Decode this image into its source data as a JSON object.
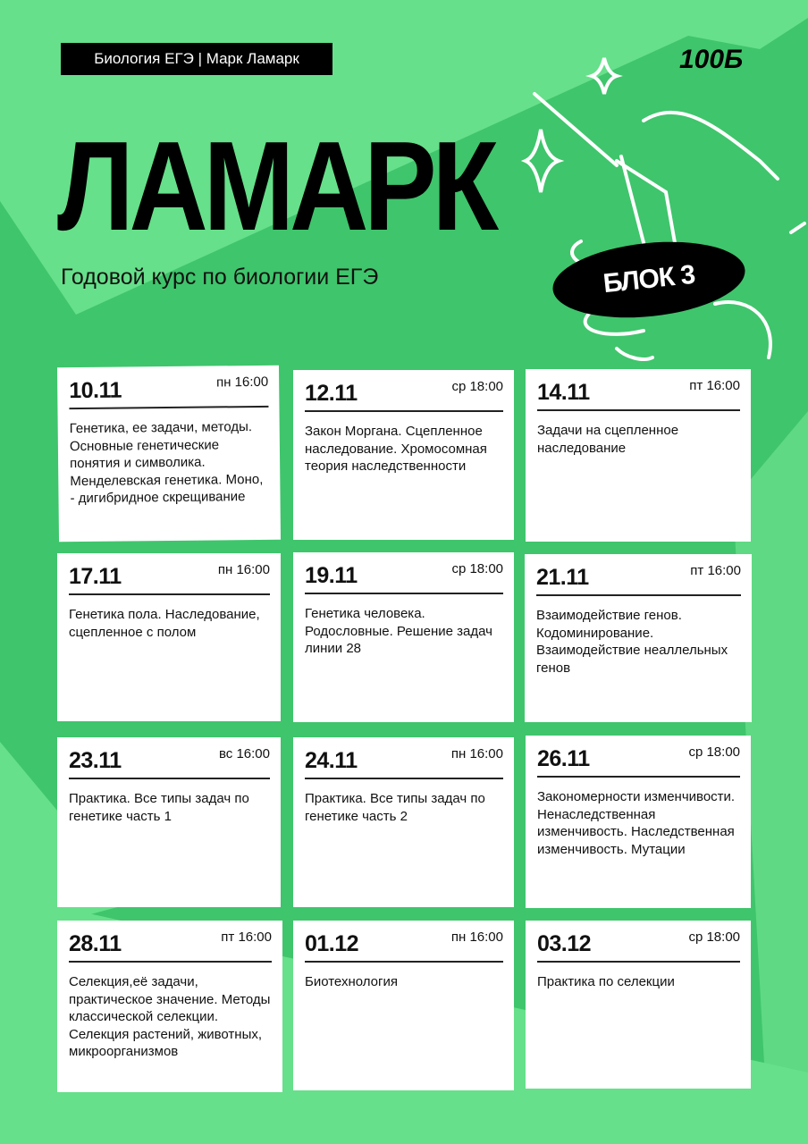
{
  "header": {
    "tag": "Биология ЕГЭ | Марк Ламарк",
    "brand": "100Б",
    "title": "ЛАМАРК",
    "subtitle": "Годовой курс по биологии ЕГЭ",
    "block": "БЛОК 3"
  },
  "colors": {
    "light_green": "#66e08a",
    "dark_green": "#3fc56c",
    "black": "#000000",
    "white": "#ffffff"
  },
  "lessons": [
    {
      "date": "10.11",
      "time": "пн 16:00",
      "text": "Генетика, ее задачи, методы. Основные генетические понятия и символика. Менделевская генетика. Моно, - дигибридное скрещивание"
    },
    {
      "date": "12.11",
      "time": "ср 18:00",
      "text": "Закон Моргана. Сцепленное наследование. Хромосомная теория наследственности"
    },
    {
      "date": "14.11",
      "time": "пт 16:00",
      "text": "Задачи на сцепленное наследование"
    },
    {
      "date": "17.11",
      "time": "пн 16:00",
      "text": "Генетика пола. Наследование, сцепленное с полом"
    },
    {
      "date": "19.11",
      "time": "ср 18:00",
      "text": "Генетика человека. Родословные. Решение задач линии 28"
    },
    {
      "date": "21.11",
      "time": "пт 16:00",
      "text": "Взаимодействие генов. Кодоминирование. Взаимодействие неаллельных генов"
    },
    {
      "date": "23.11",
      "time": "вс 16:00",
      "text": "Практика. Все типы задач по генетике часть 1"
    },
    {
      "date": "24.11",
      "time": "пн 16:00",
      "text": "Практика. Все типы задач по генетике часть 2"
    },
    {
      "date": "26.11",
      "time": "ср 18:00",
      "text": "Закономерности изменчивости. Ненаследственная изменчивость. Наследственная изменчивость. Мутации"
    },
    {
      "date": "28.11",
      "time": "пт 16:00",
      "text": "Селекция,её задачи, практическое значение. Методы классической селекции. Селекция растений, животных, микроорганизмов"
    },
    {
      "date": "01.12",
      "time": "пн 16:00",
      "text": "Биотехнология"
    },
    {
      "date": "03.12",
      "time": "ср 18:00",
      "text": "Практика по селекции"
    }
  ]
}
